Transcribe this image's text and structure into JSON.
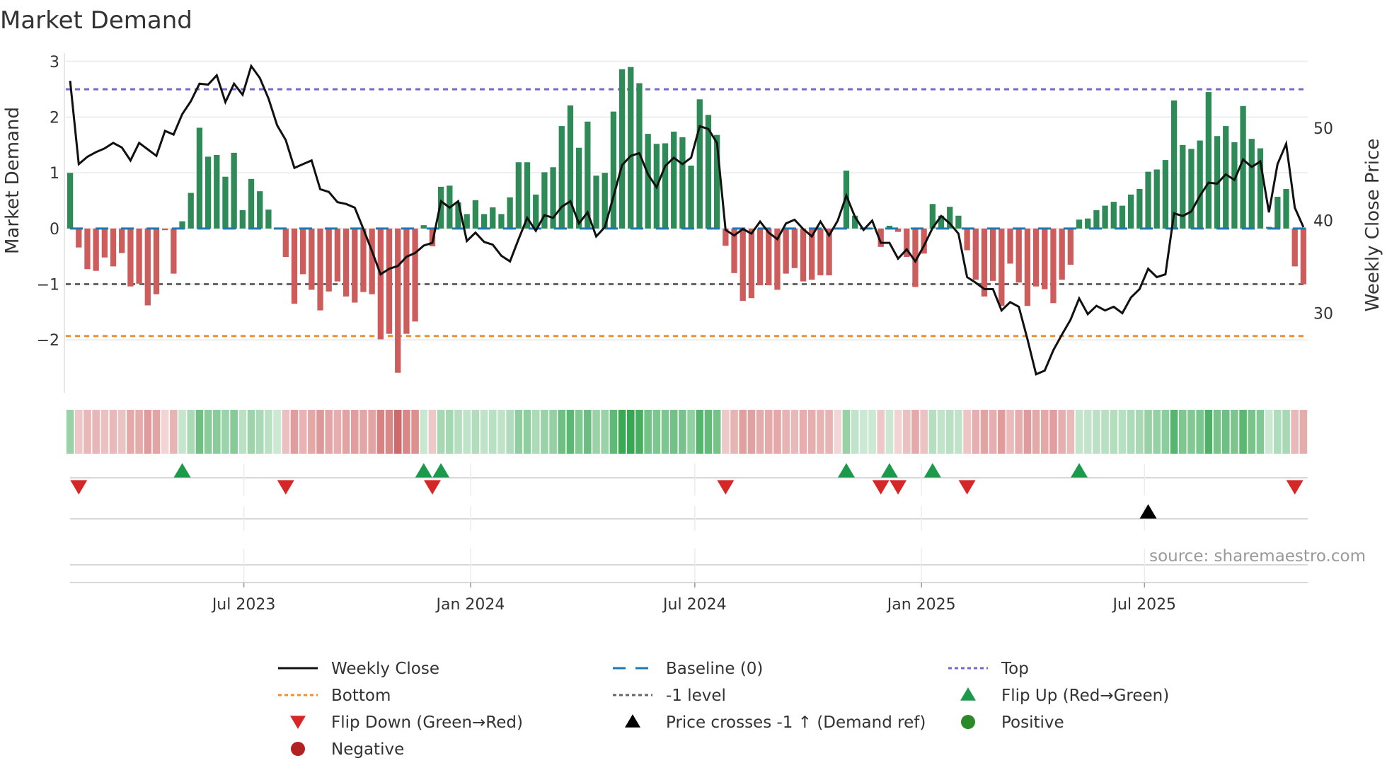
{
  "chart_data": {
    "type": "bar",
    "title": "Market Demand",
    "ylabel": "Market Demand",
    "ylabel_right": "Weekly Close Price",
    "ylim": [
      -2.95,
      3.15
    ],
    "ylim_right": [
      21.4,
      58.1
    ],
    "yticks": [
      3,
      2,
      1,
      0,
      -1,
      -2
    ],
    "yticks_right": [
      50,
      40,
      30
    ],
    "ytick_labels": [
      "3",
      "2",
      "1",
      "0",
      "−1",
      "−2"
    ],
    "ytick_labels_right": [
      "50",
      "40",
      "30"
    ],
    "week_start": "2023-02-10",
    "x_ticks": [
      {
        "label": "Jul 2023",
        "date": "2023-07-01"
      },
      {
        "label": "Jan 2024",
        "date": "2024-01-01"
      },
      {
        "label": "Jul 2024",
        "date": "2024-07-01"
      },
      {
        "label": "Jan 2025",
        "date": "2025-01-01"
      },
      {
        "label": "Jul 2025",
        "date": "2025-07-01"
      }
    ],
    "levels": {
      "baseline": 0,
      "top": 2.5,
      "bottom": -1.93,
      "minus_one": -1
    },
    "demand": [
      1.0,
      -0.34,
      -0.73,
      -0.76,
      -0.52,
      -0.68,
      -0.44,
      -1.04,
      -0.99,
      -1.38,
      -1.18,
      -0.03,
      -0.81,
      0.13,
      0.64,
      1.81,
      1.29,
      1.32,
      0.93,
      1.36,
      0.33,
      0.89,
      0.67,
      0.34,
      0.01,
      -0.51,
      -1.35,
      -0.82,
      -1.1,
      -1.47,
      -1.13,
      -0.95,
      -1.22,
      -1.33,
      -1.14,
      -1.18,
      -1.99,
      -1.89,
      -2.59,
      -1.89,
      -1.67,
      0.06,
      -0.32,
      0.75,
      0.77,
      0.47,
      0.26,
      0.51,
      0.26,
      0.38,
      0.26,
      0.56,
      1.19,
      1.19,
      0.61,
      1.01,
      1.1,
      1.84,
      2.21,
      1.45,
      1.92,
      0.95,
      1.0,
      2.1,
      2.86,
      2.9,
      2.61,
      1.7,
      1.52,
      1.53,
      1.74,
      1.64,
      1.13,
      2.32,
      2.04,
      1.68,
      -0.31,
      -0.8,
      -1.3,
      -1.25,
      -1.02,
      -1.02,
      -1.1,
      -0.81,
      -0.71,
      -0.95,
      -0.92,
      -0.84,
      -0.84,
      -0.01,
      1.04,
      0.23,
      0.01,
      0.01,
      -0.33,
      0.05,
      -0.06,
      -0.51,
      -1.05,
      -0.45,
      0.44,
      0.23,
      0.39,
      0.23,
      -0.39,
      -0.92,
      -1.22,
      -0.94,
      -1.39,
      -0.63,
      -0.97,
      -1.39,
      -1.04,
      -1.09,
      -1.34,
      -0.92,
      -0.65,
      0.16,
      0.18,
      0.33,
      0.41,
      0.48,
      0.41,
      0.61,
      0.71,
      1.02,
      1.06,
      1.23,
      2.3,
      1.5,
      1.43,
      1.58,
      2.45,
      1.66,
      1.84,
      1.55,
      2.2,
      1.61,
      1.44,
      0.03,
      0.57,
      0.71,
      -0.68,
      -1.0
    ],
    "weekly_close": [
      55.1,
      46.1,
      46.9,
      47.4,
      47.8,
      48.4,
      47.9,
      46.5,
      48.4,
      47.7,
      47.0,
      49.7,
      49.3,
      51.5,
      52.9,
      54.8,
      54.7,
      55.7,
      52.8,
      54.8,
      53.6,
      56.7,
      55.4,
      53.2,
      50.3,
      48.7,
      45.7,
      46.1,
      46.5,
      43.4,
      43.1,
      42.0,
      41.8,
      41.4,
      39.1,
      36.7,
      34.2,
      34.8,
      35.1,
      36.1,
      36.5,
      37.3,
      37.6,
      42.1,
      41.4,
      42.1,
      37.8,
      38.7,
      37.7,
      37.4,
      36.2,
      35.6,
      38.0,
      40.3,
      38.9,
      40.6,
      40.3,
      41.5,
      42.1,
      39.7,
      40.9,
      38.3,
      39.3,
      42.6,
      46.0,
      47.0,
      47.3,
      45.0,
      43.6,
      45.9,
      46.8,
      46.1,
      46.8,
      50.2,
      49.9,
      48.4,
      39.0,
      38.4,
      39.1,
      38.6,
      39.9,
      38.7,
      38.0,
      39.7,
      40.1,
      39.1,
      38.3,
      39.9,
      38.4,
      40.0,
      42.7,
      40.4,
      39.0,
      40.0,
      37.6,
      37.6,
      35.9,
      36.9,
      35.6,
      37.3,
      39.2,
      40.5,
      39.7,
      38.6,
      33.9,
      33.3,
      32.6,
      32.6,
      30.3,
      31.2,
      30.7,
      27.2,
      23.4,
      23.8,
      26.0,
      27.7,
      29.3,
      31.6,
      29.9,
      30.8,
      30.3,
      30.7,
      30.0,
      31.7,
      32.6,
      34.8,
      33.9,
      34.2,
      40.8,
      40.5,
      41.0,
      42.7,
      44.1,
      44.0,
      45.0,
      44.4,
      46.6,
      45.8,
      46.4,
      40.9,
      46.1,
      48.3,
      41.4,
      39.3
    ],
    "flip_up_weeks": [
      13,
      41,
      43,
      90,
      95,
      100,
      117
    ],
    "flip_down_weeks": [
      1,
      25,
      42,
      76,
      94,
      96,
      104,
      142
    ],
    "price_cross_weeks": [
      125
    ],
    "legend": {
      "placement": "bottom",
      "items": [
        {
          "label": "Weekly Close",
          "symbol": "line"
        },
        {
          "label": "Baseline (0)",
          "symbol": "dash"
        },
        {
          "label": "Top",
          "symbol": "dot"
        },
        {
          "label": "Bottom",
          "symbol": "dot"
        },
        {
          "label": "-1 level",
          "symbol": "dot"
        },
        {
          "label": "Flip Up (Red→Green)",
          "symbol": "triangle-up"
        },
        {
          "label": "Flip Down (Green→Red)",
          "symbol": "triangle-down"
        },
        {
          "label": "Price crosses -1 ↑ (Demand ref)",
          "symbol": "triangle-up"
        },
        {
          "label": "Positive",
          "symbol": "circle"
        },
        {
          "label": "Negative",
          "symbol": "circle"
        }
      ]
    },
    "source": "source: sharemaestro.com"
  },
  "colors": {
    "bar_pos": "#2e8b57",
    "bar_neg": "#cd5c5c",
    "price": "#111111",
    "baseline": "#1f77b4",
    "top": "#7766cc",
    "bottom": "#f28e2b",
    "minus_one": "#666666",
    "flip_up": "#1a9a4a",
    "flip_down": "#d62728",
    "cross": "#000000",
    "positive": "#2a8a2a",
    "negative": "#b22222",
    "heat_pos": [
      40,
      160,
      70
    ],
    "heat_neg": [
      200,
      80,
      80
    ]
  }
}
